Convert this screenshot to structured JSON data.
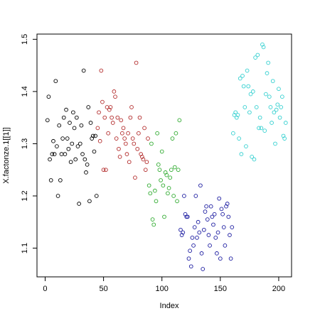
{
  "chart_data": {
    "type": "scatter",
    "x_label": "Index",
    "y_label": "X.factonze.1[[1]]",
    "xlim": [
      -7,
      211
    ],
    "ylim": [
      1.045,
      1.51
    ],
    "xticks": [
      0,
      50,
      100,
      150,
      200
    ],
    "yticks": [
      1.1,
      1.2,
      1.3,
      1.4,
      1.5
    ],
    "series": [
      {
        "color": "#000000",
        "x": [
          2,
          3,
          4,
          5,
          6,
          7,
          8,
          9,
          10,
          11,
          12,
          13,
          14,
          15,
          16,
          17,
          18,
          19,
          20,
          21,
          22,
          23,
          24,
          25,
          26,
          27,
          28,
          29,
          30,
          31,
          32,
          33,
          34,
          35,
          36,
          37,
          38,
          39,
          40,
          41,
          42,
          43,
          44
        ],
        "values": [
          1.345,
          1.39,
          1.27,
          1.23,
          1.28,
          1.305,
          1.28,
          1.42,
          1.295,
          1.2,
          1.335,
          1.23,
          1.28,
          1.31,
          1.35,
          1.28,
          1.365,
          1.31,
          1.29,
          1.34,
          1.265,
          1.3,
          1.36,
          1.33,
          1.27,
          1.35,
          1.295,
          1.185,
          1.3,
          1.335,
          1.28,
          1.44,
          1.27,
          1.245,
          1.26,
          1.37,
          1.19,
          1.34,
          1.31,
          1.315,
          1.285,
          1.315,
          1.2
        ]
      },
      {
        "color": "#b22a2a",
        "x": [
          45,
          46,
          47,
          48,
          49,
          50,
          51,
          52,
          53,
          54,
          55,
          56,
          57,
          58,
          59,
          60,
          61,
          62,
          63,
          64,
          65,
          66,
          67,
          68,
          69,
          70,
          71,
          72,
          73,
          74,
          75,
          76,
          77,
          78,
          79,
          80,
          81,
          82,
          83,
          84,
          85,
          86,
          87,
          88
        ],
        "values": [
          1.33,
          1.36,
          1.305,
          1.44,
          1.38,
          1.25,
          1.35,
          1.25,
          1.37,
          1.32,
          1.365,
          1.37,
          1.35,
          1.34,
          1.4,
          1.39,
          1.31,
          1.35,
          1.29,
          1.275,
          1.345,
          1.32,
          1.33,
          1.31,
          1.3,
          1.28,
          1.32,
          1.265,
          1.35,
          1.37,
          1.31,
          1.3,
          1.235,
          1.455,
          1.29,
          1.32,
          1.35,
          1.28,
          1.275,
          1.27,
          1.33,
          1.25,
          1.265,
          1.31
        ]
      },
      {
        "color": "#2eaa2e",
        "x": [
          89,
          90,
          91,
          92,
          93,
          94,
          95,
          96,
          97,
          98,
          99,
          100,
          101,
          102,
          103,
          104,
          105,
          106,
          107,
          108,
          109,
          110,
          111,
          112,
          113,
          114,
          115
        ],
        "values": [
          1.22,
          1.205,
          1.3,
          1.155,
          1.145,
          1.21,
          1.19,
          1.32,
          1.26,
          1.25,
          1.23,
          1.285,
          1.22,
          1.16,
          1.245,
          1.24,
          1.205,
          1.215,
          1.235,
          1.25,
          1.31,
          1.2,
          1.255,
          1.32,
          1.19,
          1.25,
          1.345
        ]
      },
      {
        "color": "#1a1aa0",
        "x": [
          116,
          117,
          118,
          119,
          120,
          121,
          122,
          123,
          124,
          125,
          126,
          127,
          128,
          129,
          130,
          131,
          132,
          133,
          134,
          135,
          136,
          137,
          138,
          139,
          140,
          141,
          142,
          143,
          144,
          145,
          146,
          147,
          148,
          149,
          150,
          151,
          152,
          153,
          154,
          155,
          156,
          157,
          158,
          159,
          160
        ],
        "values": [
          1.135,
          1.125,
          1.13,
          1.2,
          1.165,
          1.16,
          1.16,
          1.08,
          1.095,
          1.065,
          1.12,
          1.105,
          1.14,
          1.2,
          1.12,
          1.15,
          1.13,
          1.22,
          1.09,
          1.06,
          1.135,
          1.17,
          1.18,
          1.155,
          1.125,
          1.105,
          1.18,
          1.16,
          1.145,
          1.165,
          1.12,
          1.09,
          1.13,
          1.195,
          1.08,
          1.175,
          1.165,
          1.14,
          1.105,
          1.18,
          1.185,
          1.16,
          1.125,
          1.08,
          1.14
        ]
      },
      {
        "color": "#33d0d0",
        "x": [
          161,
          162,
          163,
          164,
          165,
          166,
          167,
          168,
          169,
          170,
          171,
          172,
          173,
          174,
          175,
          176,
          177,
          178,
          179,
          180,
          181,
          182,
          183,
          184,
          185,
          186,
          187,
          188,
          189,
          190,
          191,
          192,
          193,
          194,
          195,
          196,
          197,
          198,
          199,
          200,
          201,
          202,
          203,
          204,
          205,
          206
        ],
        "values": [
          1.32,
          1.355,
          1.36,
          1.35,
          1.355,
          1.31,
          1.425,
          1.28,
          1.43,
          1.41,
          1.37,
          1.295,
          1.44,
          1.41,
          1.36,
          1.395,
          1.275,
          1.4,
          1.27,
          1.465,
          1.37,
          1.47,
          1.33,
          1.35,
          1.33,
          1.49,
          1.485,
          1.325,
          1.395,
          1.435,
          1.455,
          1.39,
          1.37,
          1.34,
          1.42,
          1.36,
          1.3,
          1.365,
          1.375,
          1.405,
          1.35,
          1.37,
          1.39,
          1.315,
          1.31,
          1.34
        ]
      }
    ]
  }
}
